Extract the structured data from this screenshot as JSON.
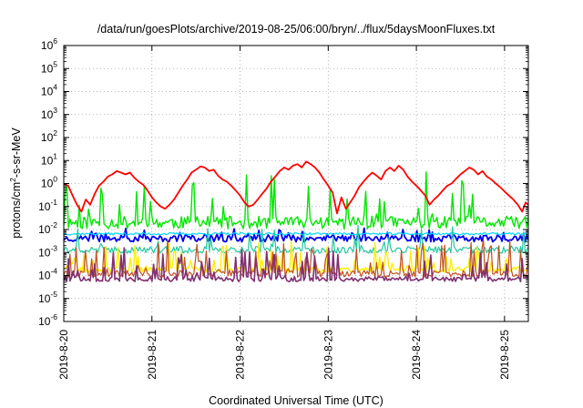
{
  "chart_data": {
    "type": "line",
    "title": "/data/run/goesPlots/archive/2019-08-25/06:00/bryn/../flux/5daysMoonFluxes.txt",
    "xlabel": "Coordinated Universal Time (UTC)",
    "ylabel": {
      "prefix": "protons/cm",
      "sup": "2",
      "suffix": "-s-sr-MeV"
    },
    "y_scale": "log",
    "ylim": [
      1e-06,
      1000000.0
    ],
    "y_ticks": [
      {
        "base": "10",
        "exp": "-6"
      },
      {
        "base": "10",
        "exp": "-5"
      },
      {
        "base": "10",
        "exp": "-4"
      },
      {
        "base": "10",
        "exp": "-3"
      },
      {
        "base": "10",
        "exp": "-2"
      },
      {
        "base": "10",
        "exp": "-1"
      },
      {
        "base": "10",
        "exp": "0"
      },
      {
        "base": "10",
        "exp": "1"
      },
      {
        "base": "10",
        "exp": "2"
      },
      {
        "base": "10",
        "exp": "3"
      },
      {
        "base": "10",
        "exp": "4"
      },
      {
        "base": "10",
        "exp": "5"
      },
      {
        "base": "10",
        "exp": "6"
      }
    ],
    "x_ticks": [
      "2019-8-20",
      "2019-8-21",
      "2019-8-22",
      "2019-8-23",
      "2019-8-24",
      "2019-8-25"
    ],
    "x_tick_days": [
      0,
      1,
      2,
      3,
      4,
      5
    ],
    "xlim_days": [
      0,
      5.27
    ],
    "grid": true,
    "legend": "none",
    "series": [
      {
        "color": "#ff0000",
        "width": 1.8,
        "points": [
          [
            0,
            1.0
          ],
          [
            0.05,
            0.8
          ],
          [
            0.1,
            0.3
          ],
          [
            0.15,
            0.12
          ],
          [
            0.2,
            0.06
          ],
          [
            0.25,
            0.2
          ],
          [
            0.3,
            0.12
          ],
          [
            0.35,
            0.35
          ],
          [
            0.4,
            0.8
          ],
          [
            0.45,
            1.2
          ],
          [
            0.5,
            2.0
          ],
          [
            0.55,
            2.5
          ],
          [
            0.6,
            3.5
          ],
          [
            0.65,
            3.0
          ],
          [
            0.7,
            2.5
          ],
          [
            0.75,
            3.0
          ],
          [
            0.8,
            1.8
          ],
          [
            0.85,
            1.2
          ],
          [
            0.9,
            0.9
          ],
          [
            0.95,
            0.5
          ],
          [
            1.0,
            0.25
          ],
          [
            1.05,
            0.15
          ],
          [
            1.1,
            0.1
          ],
          [
            1.15,
            0.08
          ],
          [
            1.2,
            0.12
          ],
          [
            1.25,
            0.2
          ],
          [
            1.3,
            0.4
          ],
          [
            1.35,
            0.8
          ],
          [
            1.4,
            1.5
          ],
          [
            1.45,
            3.0
          ],
          [
            1.5,
            4.0
          ],
          [
            1.55,
            5.5
          ],
          [
            1.6,
            5.0
          ],
          [
            1.65,
            3.5
          ],
          [
            1.7,
            4.0
          ],
          [
            1.75,
            2.2
          ],
          [
            1.8,
            1.5
          ],
          [
            1.85,
            1.2
          ],
          [
            1.9,
            0.8
          ],
          [
            1.95,
            0.5
          ],
          [
            2.0,
            0.3
          ],
          [
            2.05,
            0.15
          ],
          [
            2.1,
            0.1
          ],
          [
            2.15,
            0.12
          ],
          [
            2.2,
            0.2
          ],
          [
            2.25,
            0.35
          ],
          [
            2.3,
            0.6
          ],
          [
            2.35,
            1.2
          ],
          [
            2.4,
            2.0
          ],
          [
            2.45,
            3.5
          ],
          [
            2.5,
            5.0
          ],
          [
            2.55,
            4.0
          ],
          [
            2.6,
            6.0
          ],
          [
            2.65,
            7.0
          ],
          [
            2.7,
            5.0
          ],
          [
            2.75,
            9.0
          ],
          [
            2.8,
            7.0
          ],
          [
            2.85,
            5.0
          ],
          [
            2.9,
            3.0
          ],
          [
            2.95,
            1.5
          ],
          [
            3.0,
            0.8
          ],
          [
            3.05,
            0.4
          ],
          [
            3.1,
            0.05
          ],
          [
            3.15,
            0.25
          ],
          [
            3.2,
            0.08
          ],
          [
            3.25,
            0.15
          ],
          [
            3.3,
            0.3
          ],
          [
            3.35,
            0.7
          ],
          [
            3.4,
            1.2
          ],
          [
            3.45,
            2.0
          ],
          [
            3.5,
            3.0
          ],
          [
            3.55,
            2.2
          ],
          [
            3.6,
            1.5
          ],
          [
            3.65,
            3.5
          ],
          [
            3.7,
            5.0
          ],
          [
            3.75,
            3.5
          ],
          [
            3.8,
            6.0
          ],
          [
            3.85,
            4.0
          ],
          [
            3.9,
            2.0
          ],
          [
            3.95,
            1.2
          ],
          [
            4.0,
            0.8
          ],
          [
            4.05,
            0.5
          ],
          [
            4.1,
            0.3
          ],
          [
            4.15,
            0.12
          ],
          [
            4.2,
            0.2
          ],
          [
            4.25,
            0.3
          ],
          [
            4.3,
            0.5
          ],
          [
            4.35,
            0.8
          ],
          [
            4.4,
            1.0
          ],
          [
            4.45,
            1.6
          ],
          [
            4.5,
            2.5
          ],
          [
            4.55,
            3.5
          ],
          [
            4.6,
            5.0
          ],
          [
            4.65,
            4.0
          ],
          [
            4.7,
            2.5
          ],
          [
            4.75,
            3.5
          ],
          [
            4.8,
            2.0
          ],
          [
            4.85,
            1.5
          ],
          [
            4.9,
            1.0
          ],
          [
            4.95,
            0.7
          ],
          [
            5.0,
            0.45
          ],
          [
            5.05,
            0.3
          ],
          [
            5.1,
            0.2
          ],
          [
            5.15,
            0.12
          ],
          [
            5.2,
            0.06
          ],
          [
            5.24,
            0.15
          ],
          [
            5.27,
            0.12
          ]
        ]
      },
      {
        "color": "#00e600",
        "width": 1.4,
        "base": 0.02,
        "spread": 0.55,
        "seed": 11,
        "spike": 2.0,
        "spikeProb": 0.12
      },
      {
        "color": "#0000ee",
        "width": 1.8,
        "base": 0.004,
        "spread": 0.28,
        "seed": 23,
        "spike": 0.35,
        "spikeProb": 0.2
      },
      {
        "color": "#00d8ff",
        "width": 1.2,
        "base": 0.0065,
        "spread": 0.1,
        "seed": 37,
        "spike": 0,
        "spikeProb": 0
      },
      {
        "color": "#20c8a0",
        "width": 1.2,
        "base": 0.0013,
        "spread": 0.3,
        "seed": 41,
        "spike": 1.0,
        "spikeProb": 0.1
      },
      {
        "color": "#ffee00",
        "width": 1.4,
        "base": 0.00018,
        "spread": 0.25,
        "seed": 53,
        "spike": 1.2,
        "spikeProb": 0.2
      },
      {
        "color": "#c05020",
        "width": 1.2,
        "base": 0.00012,
        "spread": 0.3,
        "seed": 67,
        "spike": 1.4,
        "spikeProb": 0.22
      },
      {
        "color": "#803070",
        "width": 1.6,
        "base": 7e-05,
        "spread": 0.22,
        "seed": 79,
        "spike": 1.3,
        "spikeProb": 0.22
      }
    ]
  }
}
